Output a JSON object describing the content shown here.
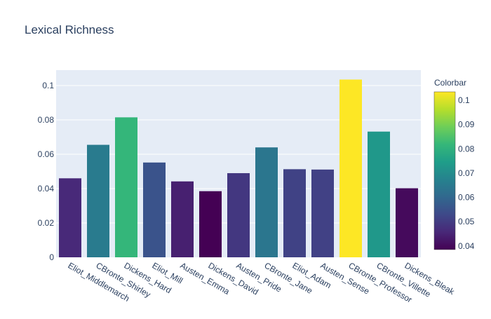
{
  "chart_data": {
    "type": "bar",
    "title": "Lexical Richness",
    "xlabel": "",
    "ylabel": "",
    "categories": [
      "Eliot_Middlemarch",
      "CBronte_Shirley",
      "Dickens_Hard",
      "Eliot_Mill",
      "Austen_Emma",
      "Dickens_David",
      "Austen_Pride",
      "CBronte_Jane",
      "Eliot_Adam",
      "Austen_Sense",
      "CBronte_Professor",
      "CBronte_Villette",
      "Dickens_Bleak"
    ],
    "values": [
      0.046,
      0.0655,
      0.0815,
      0.0552,
      0.0442,
      0.0385,
      0.049,
      0.064,
      0.0513,
      0.0511,
      0.1035,
      0.0732,
      0.0402
    ],
    "ylim": [
      0,
      0.109
    ],
    "yticks": [
      0,
      0.02,
      0.04,
      0.06,
      0.08,
      0.1
    ],
    "ytick_labels": [
      "0",
      "0.02",
      "0.04",
      "0.06",
      "0.08",
      "0.1"
    ],
    "grid": true,
    "colorscale": "Viridis",
    "colorbar": {
      "title": "Colorbar",
      "range": [
        0.0385,
        0.1035
      ],
      "ticks": [
        0.04,
        0.05,
        0.06,
        0.07,
        0.08,
        0.09,
        0.1
      ],
      "tick_labels": [
        "0.04",
        "0.05",
        "0.06",
        "0.07",
        "0.08",
        "0.09",
        "0.1"
      ]
    },
    "colors": {
      "plot_background": "#e5ecf6",
      "gridline": "#ffffff",
      "text": "#2a3f5f"
    }
  }
}
